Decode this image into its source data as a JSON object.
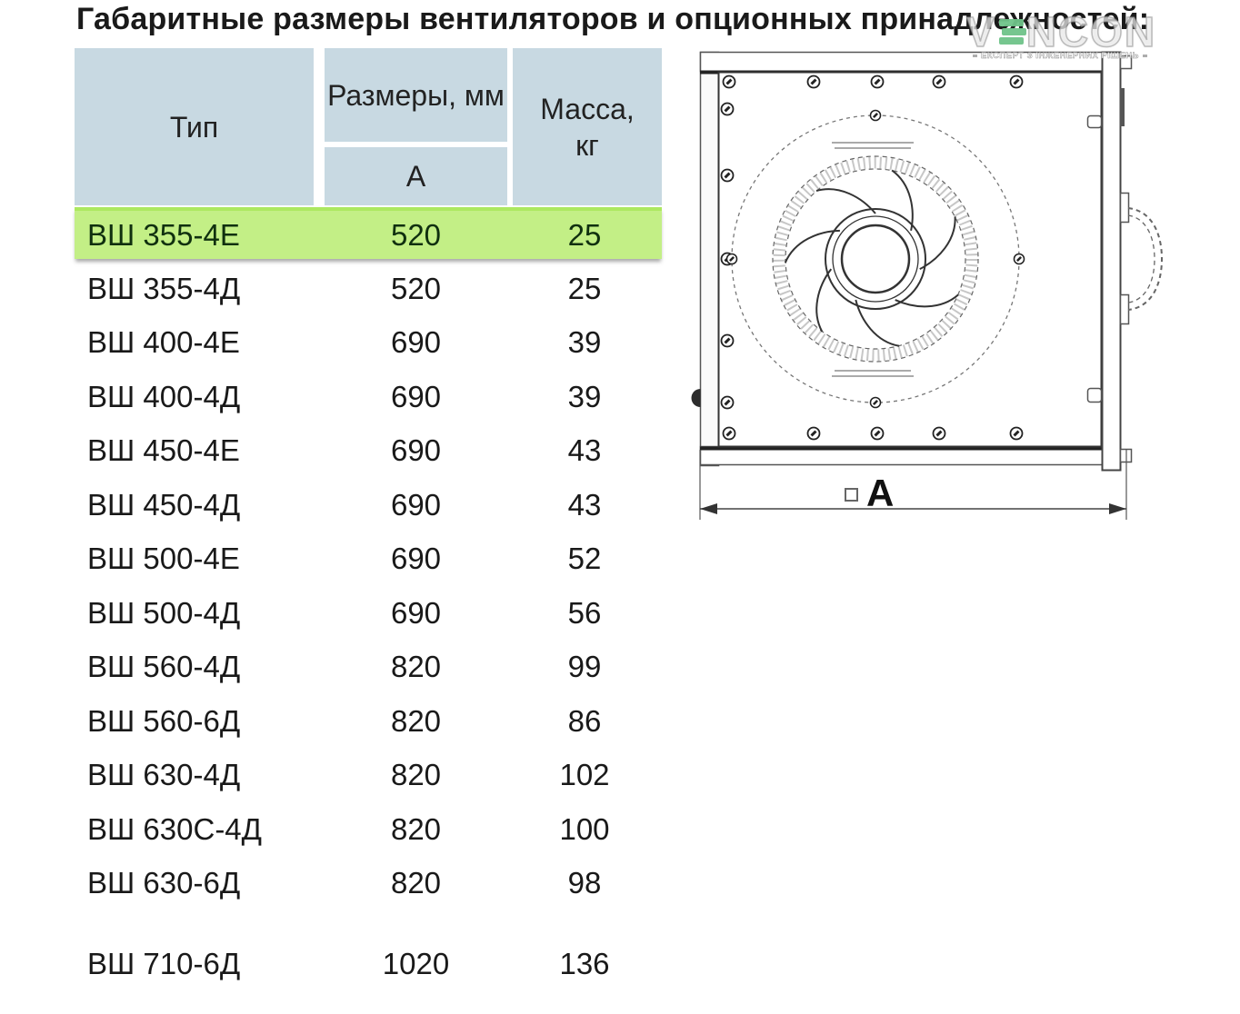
{
  "page": {
    "background": "#ffffff"
  },
  "title": "Габаритные размеры вентиляторов и опционных принадлежностей:",
  "watermark": {
    "brand_prefix": "V",
    "brand_suffix": "NCON",
    "logo_icon": "stacked-books-icon",
    "logo_green": "#6fc389",
    "tagline": "ЕКСПЕРТ З ІНЖЕНЕРНИХ РІШЕНЬ"
  },
  "table": {
    "header": {
      "type": "Тип",
      "dimensions_group": "Размеры, мм",
      "dimension_a": "А",
      "mass": "Масса, кг"
    },
    "colors": {
      "header_bg": "#c8d9e2",
      "highlight_bg": "#c3ef86",
      "highlight_top": "#ace860"
    },
    "rows": [
      {
        "type": "ВШ 355-4Е",
        "a": "520",
        "mass": "25",
        "highlight": true
      },
      {
        "type": "ВШ 355-4Д",
        "a": "520",
        "mass": "25"
      },
      {
        "type": "ВШ 400-4Е",
        "a": "690",
        "mass": "39"
      },
      {
        "type": "ВШ 400-4Д",
        "a": "690",
        "mass": "39"
      },
      {
        "type": "ВШ 450-4Е",
        "a": "690",
        "mass": "43"
      },
      {
        "type": "ВШ 450-4Д",
        "a": "690",
        "mass": "43"
      },
      {
        "type": "ВШ 500-4Е",
        "a": "690",
        "mass": "52"
      },
      {
        "type": "ВШ 500-4Д",
        "a": "690",
        "mass": "56"
      },
      {
        "type": "ВШ 560-4Д",
        "a": "820",
        "mass": "99"
      },
      {
        "type": "ВШ 560-6Д",
        "a": "820",
        "mass": "86"
      },
      {
        "type": "ВШ 630-4Д",
        "a": "820",
        "mass": "102"
      },
      {
        "type": "ВШ 630С-4Д",
        "a": "820",
        "mass": "100"
      },
      {
        "type": "ВШ 630-6Д",
        "a": "820",
        "mass": "98"
      },
      {
        "type": "ВШ 710-6Д",
        "a": "1020",
        "mass": "136",
        "spacer_before": true
      }
    ]
  },
  "diagram": {
    "dimension_label": "A",
    "square_symbol_icon": "square-outline-icon"
  }
}
